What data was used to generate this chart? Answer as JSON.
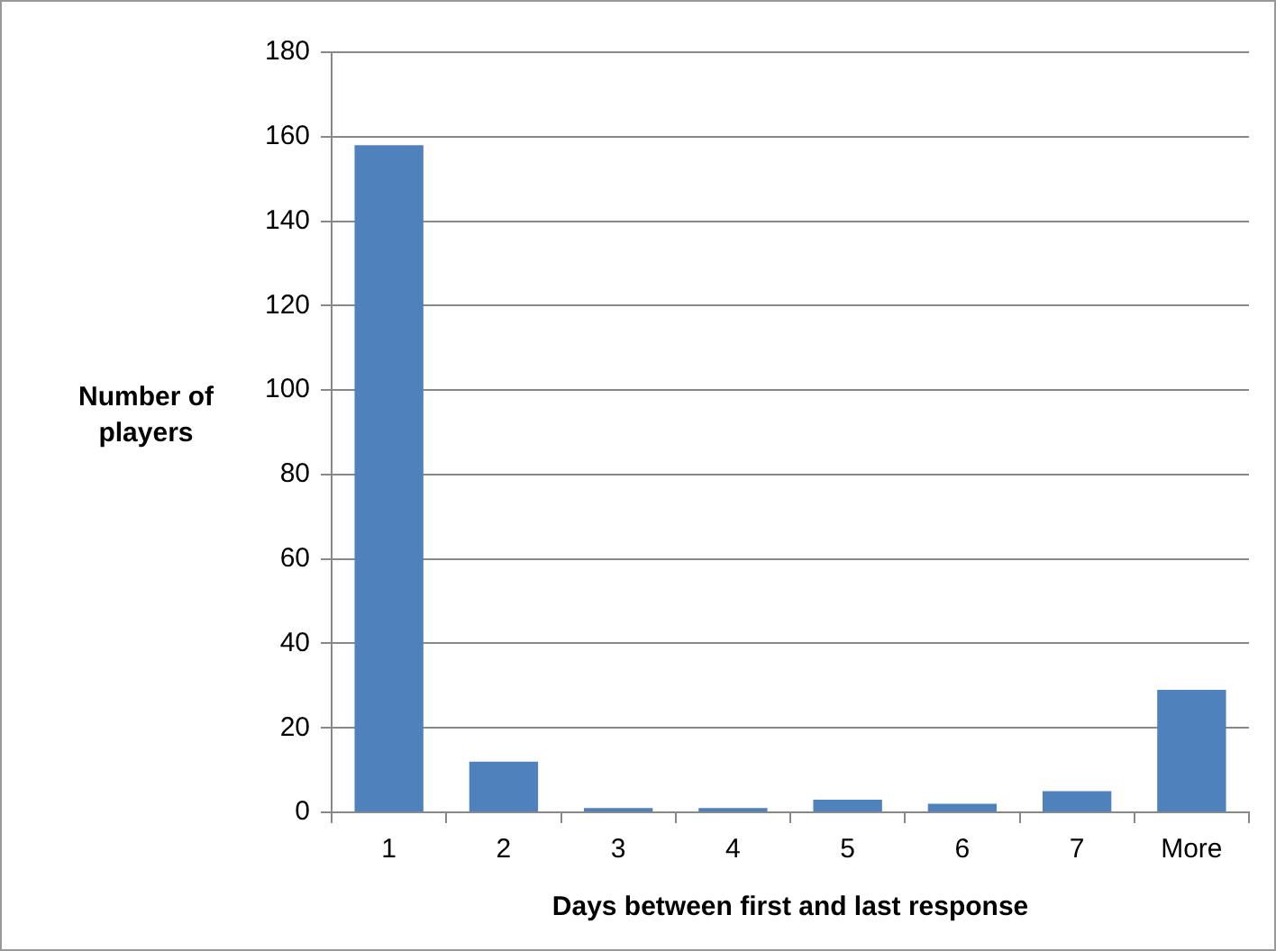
{
  "chart_data": {
    "type": "bar",
    "xlabel": "Days between first and last response",
    "ylabel": "Number of players",
    "categories": [
      "1",
      "2",
      "3",
      "4",
      "5",
      "6",
      "7",
      "More"
    ],
    "values": [
      158,
      12,
      1,
      1,
      3,
      2,
      5,
      29
    ],
    "color": "#4f81bd",
    "ylim": [
      0,
      180
    ],
    "yticks": [
      0,
      20,
      40,
      60,
      80,
      100,
      120,
      140,
      160,
      180
    ],
    "grid": "y",
    "legend": false
  }
}
